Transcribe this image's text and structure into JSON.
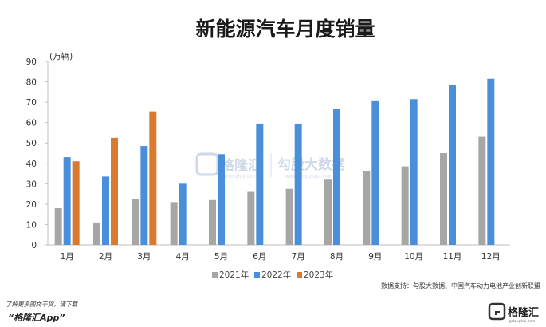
{
  "chart_data": {
    "type": "bar",
    "title": "新能源汽车月度销量",
    "unit_label": "(万辆)",
    "categories": [
      "1月",
      "2月",
      "3月",
      "4月",
      "5月",
      "6月",
      "7月",
      "8月",
      "9月",
      "10月",
      "11月",
      "12月"
    ],
    "series": [
      {
        "name": "2021年",
        "color": "#a6a6a6",
        "values": [
          18,
          11,
          22.5,
          21,
          22,
          26,
          27.5,
          32,
          36,
          38.5,
          45,
          53
        ]
      },
      {
        "name": "2022年",
        "color": "#4a8fd9",
        "values": [
          43,
          33.5,
          48.5,
          30,
          44.5,
          59.5,
          59.5,
          66.5,
          70.5,
          71.5,
          78.5,
          81.5
        ]
      },
      {
        "name": "2023年",
        "color": "#d97a30",
        "values": [
          41,
          52.5,
          65.5,
          null,
          null,
          null,
          null,
          null,
          null,
          null,
          null,
          null
        ]
      }
    ],
    "ylim": [
      0,
      90
    ],
    "yticks": [
      0,
      10,
      20,
      30,
      40,
      50,
      60,
      70,
      80,
      90
    ],
    "legend_position": "bottom-center",
    "grid": false
  },
  "source": "数据支持：勾股大数据、中国汽车动力电池产业创新联盟",
  "watermark": {
    "brand": "格隆汇",
    "brand_sub": "gelonghui.com",
    "data_brand": "勾股大数据",
    "data_sub": "www.gogudata.com"
  },
  "footer": {
    "line1": "了解更多图文干货，请下载",
    "line2": "“格隆汇App”"
  },
  "logo": {
    "text": "格隆汇",
    "sub": "gelonghui.com"
  }
}
